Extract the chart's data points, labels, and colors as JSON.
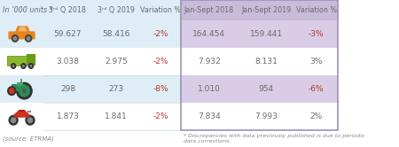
{
  "title_left": "In ’000 units *",
  "col_headers_left": [
    "3ʳᵈ Q 2018",
    "3ʳᵈ Q 2019",
    "Variation %"
  ],
  "col_headers_right": [
    "Jan-Sept 2018",
    "Jan-Sept 2019",
    "Variation %"
  ],
  "rows": [
    [
      "59.627",
      "58.416",
      "-2%",
      "164.454",
      "159.441",
      "-3%"
    ],
    [
      "3.038",
      "2.975",
      "-2%",
      "7.932",
      "8.131",
      "3%"
    ],
    [
      "298",
      "273",
      "-8%",
      "1.010",
      "954",
      "-6%"
    ],
    [
      "1.873",
      "1.841",
      "-2%",
      "7.834",
      "7.993",
      "2%"
    ]
  ],
  "source": "(source: ETRMA)",
  "footnote": "* Discrepancies with data previously published is due to periodic\ndata corrections.",
  "header_bg_left": "#deedf6",
  "header_bg_right": "#c8bcd8",
  "row_bg_left_even": "#deedf6",
  "row_bg_left_odd": "#ffffff",
  "row_bg_right_even": "#d8cce6",
  "row_bg_right_odd": "#ffffff",
  "text_color": "#6b6b6b",
  "neg_color": "#c0392b",
  "border_right": "#a090b8",
  "icon_car_color": "#e8841a",
  "icon_truck_body": "#8aba28",
  "icon_tractor_body": "#2e8b57",
  "icon_tractor_accent": "#cc3322",
  "icon_scooter_color": "#cc3322"
}
